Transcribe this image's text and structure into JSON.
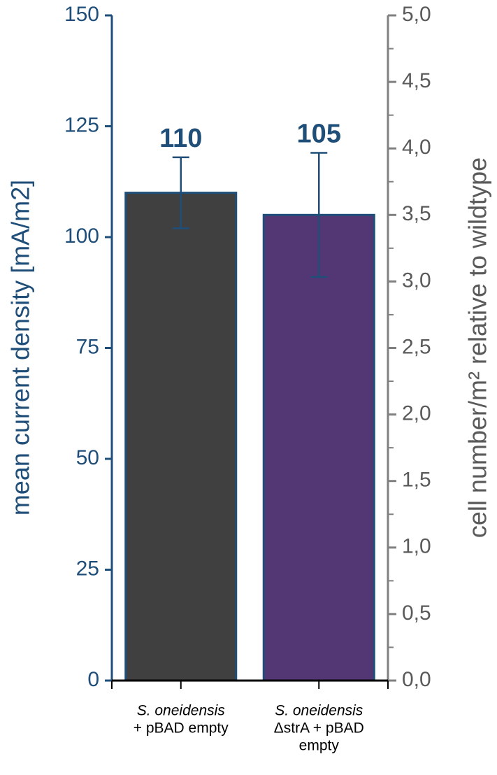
{
  "chart_data": {
    "type": "bar",
    "ylabel": "mean current density [mA/m2]",
    "y2label": "cell number/m² relative to wildtype",
    "categories": [
      [
        "S. oneidensis",
        "+ pBAD empty"
      ],
      [
        "S. oneidensis",
        "ΔstrA + pBAD",
        "empty"
      ]
    ],
    "values": [
      110,
      105
    ],
    "errors": [
      8,
      14
    ],
    "colors": [
      "#404040",
      "#533775"
    ],
    "edge_color": "#1f4e79",
    "ylim": [
      0,
      150
    ],
    "yticks": [
      0,
      25,
      50,
      75,
      100,
      125,
      150
    ],
    "y2lim": [
      0,
      5
    ],
    "y2ticks": [
      {
        "value": 0,
        "label": "0,0"
      },
      {
        "value": 0.5,
        "label": "0,5"
      },
      {
        "value": 1,
        "label": "1,0"
      },
      {
        "value": 1.5,
        "label": "1,5"
      },
      {
        "value": 2,
        "label": "2,0"
      },
      {
        "value": 2.5,
        "label": "2,5"
      },
      {
        "value": 3,
        "label": "3,0"
      },
      {
        "value": 3.5,
        "label": "3,5"
      },
      {
        "value": 4,
        "label": "4,0"
      },
      {
        "value": 4.5,
        "label": "4,5"
      },
      {
        "value": 5,
        "label": "5,0"
      }
    ],
    "y2_minor_ticks": [
      0.25,
      0.75,
      1.25,
      1.75,
      2.25,
      2.75,
      3.25,
      3.75,
      4.25,
      4.75
    ]
  }
}
